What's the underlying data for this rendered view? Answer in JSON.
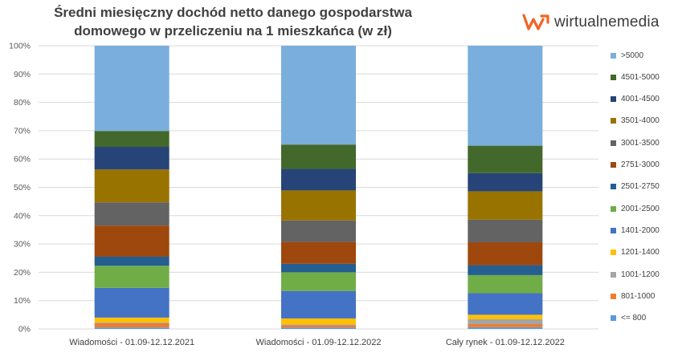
{
  "title_line1": "Średni miesięczny dochód netto danego gospodarstwa",
  "title_line2": "domowego w przeliczeniu na 1 mieszkańca (w zł)",
  "logo": {
    "text": "wirtualnemedia",
    "icon": "wirtualnemedia-logo-icon",
    "color": "#f26522"
  },
  "chart_data": {
    "type": "bar",
    "stacked": true,
    "percent": true,
    "categories": [
      "Wiadomości - 01.09-12.12.2021",
      "Wiadomości - 01.09-12.12.2022",
      "Cały rynek - 01.09-12.12.2022"
    ],
    "ylim": [
      0,
      100
    ],
    "yticks": [
      "0%",
      "10%",
      "20%",
      "30%",
      "40%",
      "50%",
      "60%",
      "70%",
      "80%",
      "90%",
      "100%"
    ],
    "grid": true,
    "legend_position": "right",
    "series": [
      {
        "name": "<= 800",
        "color": "#5b9bd5",
        "values": [
          0.5,
          0.5,
          0.6
        ]
      },
      {
        "name": "801-1000",
        "color": "#ed7d31",
        "values": [
          1.5,
          0.8,
          1.1
        ]
      },
      {
        "name": "1001-1200",
        "color": "#a5a5a5",
        "values": [
          0.3,
          0.3,
          1.7
        ]
      },
      {
        "name": "1201-1400",
        "color": "#ffc000",
        "values": [
          1.7,
          2.1,
          1.6
        ]
      },
      {
        "name": "1401-2000",
        "color": "#4472c4",
        "values": [
          10.5,
          9.7,
          7.6
        ]
      },
      {
        "name": "2001-2500",
        "color": "#70ad47",
        "values": [
          7.8,
          6.6,
          6.4
        ]
      },
      {
        "name": "2501-2750",
        "color": "#255e91",
        "values": [
          3.2,
          3.0,
          3.5
        ]
      },
      {
        "name": "2751-3000",
        "color": "#9e480e",
        "values": [
          11.0,
          7.7,
          8.1
        ]
      },
      {
        "name": "3001-3500",
        "color": "#636363",
        "values": [
          8.2,
          7.6,
          8.0
        ]
      },
      {
        "name": "3501-4000",
        "color": "#997300",
        "values": [
          11.6,
          10.6,
          10.0
        ]
      },
      {
        "name": "4001-4500",
        "color": "#264478",
        "values": [
          8.0,
          7.6,
          6.4
        ]
      },
      {
        "name": "4501-5000",
        "color": "#43682b",
        "values": [
          5.6,
          8.6,
          9.7
        ]
      },
      {
        "name": ">5000",
        "color": "#7aaedc",
        "values": [
          30.1,
          34.9,
          35.3
        ]
      }
    ]
  }
}
